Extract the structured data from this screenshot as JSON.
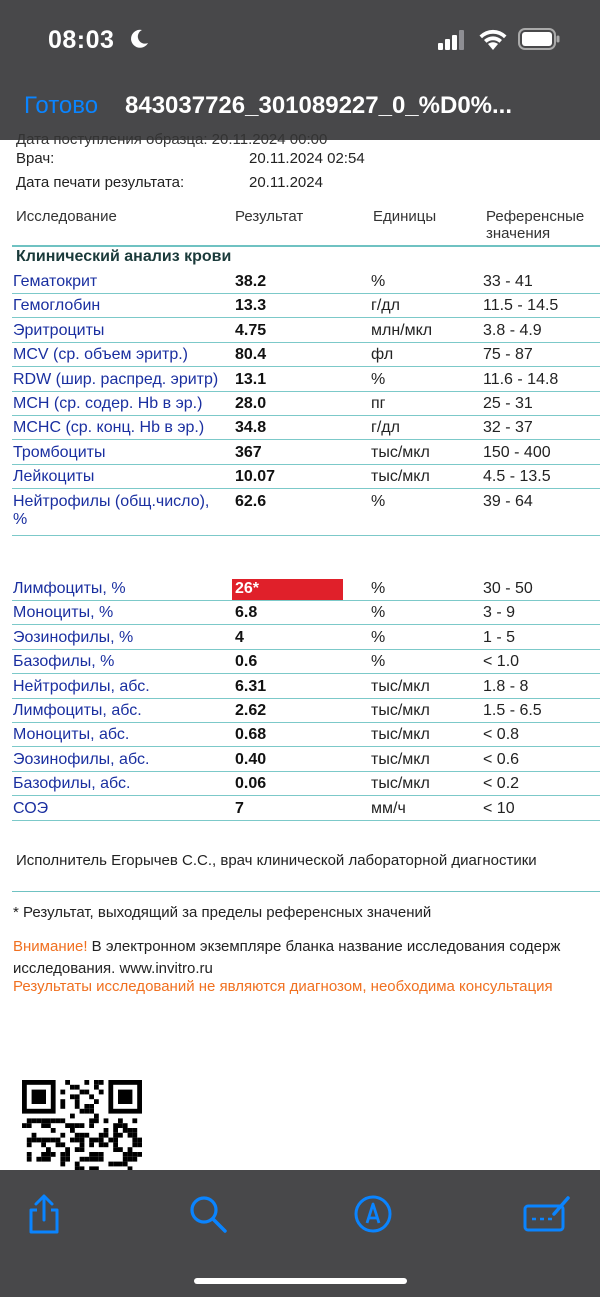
{
  "status": {
    "time": "08:03"
  },
  "nav": {
    "done": "Готово",
    "title": "843037726_301089227_0_%D0%..."
  },
  "doc": {
    "cut_line": "Дата поступления образца: 20.11.2024 00:00",
    "meta": [
      {
        "label": "Врач:",
        "value": "20.11.2024 02:54"
      },
      {
        "label": "Дата печати результата:",
        "value": "20.11.2024"
      }
    ],
    "headers": {
      "test": "Исследование",
      "result": "Результат",
      "units": "Единицы",
      "ref1": "Референсные",
      "ref2": "значения"
    },
    "section": "Клинический анализ крови",
    "rows": [
      {
        "name": "Гематокрит",
        "result": "38.2",
        "unit": "%",
        "ref": "33 - 41"
      },
      {
        "name": "Гемоглобин",
        "result": "13.3",
        "unit": "г/дл",
        "ref": "11.5 - 14.5"
      },
      {
        "name": "Эритроциты",
        "result": "4.75",
        "unit": "млн/мкл",
        "ref": "3.8 - 4.9"
      },
      {
        "name": "MCV (ср. объем эритр.)",
        "result": "80.4",
        "unit": "фл",
        "ref": "75 - 87"
      },
      {
        "name": "RDW (шир. распред. эритр)",
        "result": "13.1",
        "unit": "%",
        "ref": "11.6 - 14.8"
      },
      {
        "name": "MCH (ср. содер. Hb в эр.)",
        "result": "28.0",
        "unit": "пг",
        "ref": "25 - 31"
      },
      {
        "name": "MCHC (ср. конц. Hb в эр.)",
        "result": "34.8",
        "unit": "г/дл",
        "ref": "32 - 37"
      },
      {
        "name": "Тромбоциты",
        "result": "367",
        "unit": "тыс/мкл",
        "ref": "150 - 400"
      },
      {
        "name": "Лейкоциты",
        "result": "10.07",
        "unit": "тыс/мкл",
        "ref": "4.5 - 13.5"
      },
      {
        "name": "Нейтрофилы (общ.число),",
        "name2": "%",
        "result": "62.6",
        "unit": "%",
        "ref": "39 - 64"
      },
      {
        "name": "Лимфоциты, %",
        "result": "26*",
        "unit": "%",
        "ref": "30 - 50",
        "flag": true
      },
      {
        "name": "Моноциты, %",
        "result": "6.8",
        "unit": "%",
        "ref": "3 - 9"
      },
      {
        "name": "Эозинофилы, %",
        "result": "4",
        "unit": "%",
        "ref": "1 - 5"
      },
      {
        "name": "Базофилы, %",
        "result": "0.6",
        "unit": "%",
        "ref": "< 1.0"
      },
      {
        "name": "Нейтрофилы, абс.",
        "result": "6.31",
        "unit": "тыс/мкл",
        "ref": "1.8 - 8"
      },
      {
        "name": "Лимфоциты, абс.",
        "result": "2.62",
        "unit": "тыс/мкл",
        "ref": "1.5 - 6.5"
      },
      {
        "name": "Моноциты, абс.",
        "result": "0.68",
        "unit": "тыс/мкл",
        "ref": "< 0.8"
      },
      {
        "name": "Эозинофилы, абс.",
        "result": "0.40",
        "unit": "тыс/мкл",
        "ref": "< 0.6"
      },
      {
        "name": "Базофилы, абс.",
        "result": "0.06",
        "unit": "тыс/мкл",
        "ref": "< 0.2"
      },
      {
        "name": "СОЭ",
        "result": "7",
        "unit": "мм/ч",
        "ref": "< 10"
      }
    ],
    "executor": "Исполнитель Егорычев С.С., врач клинической лабораторной диагностики",
    "footnote": "* Результат, выходящий за пределы референсных значений",
    "warning_label": "Внимание!",
    "warning_text": " В электронном экземпляре бланка название исследования содерж",
    "warning_line2": "исследования. www.invitro.ru",
    "warning_line3": "Результаты исследований не являются диагнозом, необходима консультация"
  },
  "toolbar": {
    "icons": [
      "share-icon",
      "search-icon",
      "markup-icon",
      "edit-icon"
    ]
  },
  "colors": {
    "accent": "#0a84ff",
    "link_text": "#1a2fa0",
    "rule": "#7cc9c9",
    "flag": "#e0202a",
    "warning": "#f07020"
  }
}
